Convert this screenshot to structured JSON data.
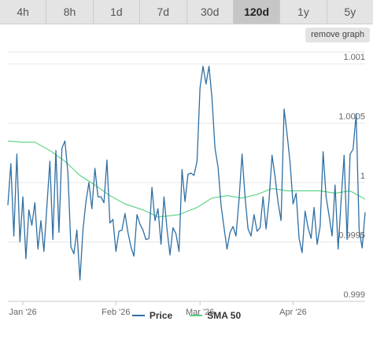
{
  "range_tabs": [
    {
      "label": "4h",
      "active": false
    },
    {
      "label": "8h",
      "active": false
    },
    {
      "label": "1d",
      "active": false
    },
    {
      "label": "7d",
      "active": false
    },
    {
      "label": "30d",
      "active": false
    },
    {
      "label": "120d",
      "active": true
    },
    {
      "label": "1y",
      "active": false
    },
    {
      "label": "5y",
      "active": false
    }
  ],
  "remove_graph_label": "remove graph",
  "chart_data": {
    "type": "line",
    "ylim": [
      0.999,
      1.0011
    ],
    "yticks": [
      {
        "value": 1.001,
        "label": "1.001"
      },
      {
        "value": 1.0005,
        "label": "1.0005"
      },
      {
        "value": 1.0,
        "label": "1"
      },
      {
        "value": 0.9995,
        "label": "0.9995"
      },
      {
        "value": 0.999,
        "label": "0.999"
      }
    ],
    "xlim": [
      "2025-12-27",
      "2026-04-25"
    ],
    "xticks": [
      {
        "date": "2026-01-01",
        "label": "Jan '26"
      },
      {
        "date": "2026-02-01",
        "label": "Feb '26"
      },
      {
        "date": "2026-03-01",
        "label": "Mar '26"
      },
      {
        "date": "2026-04-01",
        "label": "Apr '26"
      }
    ],
    "grid": {
      "horizontal": true,
      "vertical": false
    },
    "legend_position": "bottom-center",
    "series": [
      {
        "name": "Price",
        "color": "#2f6fa3",
        "points": [
          [
            "2025-12-27",
            0.99981
          ],
          [
            "2025-12-28",
            1.00016
          ],
          [
            "2025-12-29",
            0.99955
          ],
          [
            "2025-12-30",
            1.00024
          ],
          [
            "2025-12-31",
            0.9995
          ],
          [
            "2026-01-01",
            0.99988
          ],
          [
            "2026-01-02",
            0.99936
          ],
          [
            "2026-01-03",
            0.99977
          ],
          [
            "2026-01-04",
            0.99964
          ],
          [
            "2026-01-05",
            0.99983
          ],
          [
            "2026-01-06",
            0.99944
          ],
          [
            "2026-01-07",
            0.99968
          ],
          [
            "2026-01-08",
            0.99942
          ],
          [
            "2026-01-09",
            0.9998
          ],
          [
            "2026-01-10",
            1.00018
          ],
          [
            "2026-01-11",
            0.99952
          ],
          [
            "2026-01-12",
            1.00027
          ],
          [
            "2026-01-13",
            0.99958
          ],
          [
            "2026-01-14",
            1.00029
          ],
          [
            "2026-01-15",
            1.00035
          ],
          [
            "2026-01-16",
            1.00008
          ],
          [
            "2026-01-17",
            0.99946
          ],
          [
            "2026-01-18",
            0.9994
          ],
          [
            "2026-01-19",
            0.9996
          ],
          [
            "2026-01-20",
            0.99918
          ],
          [
            "2026-01-21",
            0.9996
          ],
          [
            "2026-01-22",
            0.99984
          ],
          [
            "2026-01-23",
            1.0
          ],
          [
            "2026-01-24",
            0.99978
          ],
          [
            "2026-01-25",
            1.00012
          ],
          [
            "2026-01-26",
            0.99988
          ],
          [
            "2026-01-27",
            0.99988
          ],
          [
            "2026-01-28",
            0.99983
          ],
          [
            "2026-01-29",
            1.00019
          ],
          [
            "2026-01-30",
            0.99966
          ],
          [
            "2026-01-31",
            0.99969
          ],
          [
            "2026-02-01",
            0.99942
          ],
          [
            "2026-02-02",
            0.99959
          ],
          [
            "2026-02-03",
            0.9996
          ],
          [
            "2026-02-04",
            0.99974
          ],
          [
            "2026-02-05",
            0.99958
          ],
          [
            "2026-02-06",
            0.99946
          ],
          [
            "2026-02-07",
            0.99938
          ],
          [
            "2026-02-08",
            0.99973
          ],
          [
            "2026-02-09",
            0.99965
          ],
          [
            "2026-02-10",
            0.9996
          ],
          [
            "2026-02-11",
            0.99952
          ],
          [
            "2026-02-12",
            0.99953
          ],
          [
            "2026-02-13",
            0.99996
          ],
          [
            "2026-02-14",
            0.99968
          ],
          [
            "2026-02-15",
            0.99978
          ],
          [
            "2026-02-16",
            0.99948
          ],
          [
            "2026-02-17",
            0.99988
          ],
          [
            "2026-02-18",
            0.99961
          ],
          [
            "2026-02-19",
            0.99939
          ],
          [
            "2026-02-20",
            0.99962
          ],
          [
            "2026-02-21",
            0.99957
          ],
          [
            "2026-02-22",
            0.99942
          ],
          [
            "2026-02-23",
            1.00011
          ],
          [
            "2026-02-24",
            0.99984
          ],
          [
            "2026-02-25",
            1.00007
          ],
          [
            "2026-02-26",
            1.00008
          ],
          [
            "2026-02-27",
            1.00006
          ],
          [
            "2026-02-28",
            1.00018
          ],
          [
            "2026-03-01",
            1.0008
          ],
          [
            "2026-03-02",
            1.00098
          ],
          [
            "2026-03-03",
            1.00083
          ],
          [
            "2026-03-04",
            1.00098
          ],
          [
            "2026-03-05",
            1.00071
          ],
          [
            "2026-03-06",
            1.00029
          ],
          [
            "2026-03-07",
            1.00013
          ],
          [
            "2026-03-08",
            0.99981
          ],
          [
            "2026-03-09",
            0.99962
          ],
          [
            "2026-03-10",
            0.99944
          ],
          [
            "2026-03-11",
            0.99958
          ],
          [
            "2026-03-12",
            0.99963
          ],
          [
            "2026-03-13",
            0.99955
          ],
          [
            "2026-03-14",
            0.99986
          ],
          [
            "2026-03-15",
            1.00024
          ],
          [
            "2026-03-16",
            0.99988
          ],
          [
            "2026-03-17",
            0.99961
          ],
          [
            "2026-03-18",
            0.99955
          ],
          [
            "2026-03-19",
            0.99973
          ],
          [
            "2026-03-20",
            0.99959
          ],
          [
            "2026-03-21",
            0.99962
          ],
          [
            "2026-03-22",
            0.99988
          ],
          [
            "2026-03-23",
            0.99961
          ],
          [
            "2026-03-24",
            0.99985
          ],
          [
            "2026-03-25",
            1.00023
          ],
          [
            "2026-03-26",
            1.00005
          ],
          [
            "2026-03-27",
            0.99983
          ],
          [
            "2026-03-28",
            0.99968
          ],
          [
            "2026-03-29",
            1.00062
          ],
          [
            "2026-03-30",
            1.00041
          ],
          [
            "2026-03-31",
            1.00017
          ],
          [
            "2026-04-01",
            0.99982
          ],
          [
            "2026-04-02",
            0.99991
          ],
          [
            "2026-04-03",
            0.99953
          ],
          [
            "2026-04-04",
            0.99941
          ],
          [
            "2026-04-05",
            0.99976
          ],
          [
            "2026-04-06",
            0.99962
          ],
          [
            "2026-04-07",
            0.99953
          ],
          [
            "2026-04-08",
            0.99979
          ],
          [
            "2026-04-09",
            0.99948
          ],
          [
            "2026-04-10",
            0.99963
          ],
          [
            "2026-04-11",
            1.00026
          ],
          [
            "2026-04-12",
            0.99988
          ],
          [
            "2026-04-13",
            0.99972
          ],
          [
            "2026-04-14",
            0.99955
          ],
          [
            "2026-04-15",
            0.99998
          ],
          [
            "2026-04-16",
            0.99944
          ],
          [
            "2026-04-17",
            0.99985
          ],
          [
            "2026-04-18",
            1.00023
          ],
          [
            "2026-04-19",
            0.99952
          ],
          [
            "2026-04-20",
            1.00024
          ],
          [
            "2026-04-21",
            1.00028
          ],
          [
            "2026-04-22",
            1.00058
          ],
          [
            "2026-04-23",
            0.9996
          ],
          [
            "2026-04-24",
            0.99945
          ],
          [
            "2026-04-25",
            0.99975
          ]
        ]
      },
      {
        "name": "SMA 50",
        "color": "#55d080",
        "points": [
          [
            "2025-12-27",
            1.00035
          ],
          [
            "2026-01-01",
            1.00034
          ],
          [
            "2026-01-05",
            1.00034
          ],
          [
            "2026-01-10",
            1.00027
          ],
          [
            "2026-01-15",
            1.00018
          ],
          [
            "2026-01-20",
            1.00006
          ],
          [
            "2026-01-25",
            0.99998
          ],
          [
            "2026-01-30",
            0.99989
          ],
          [
            "2026-02-04",
            0.99982
          ],
          [
            "2026-02-10",
            0.99977
          ],
          [
            "2026-02-15",
            0.99971
          ],
          [
            "2026-02-22",
            0.99973
          ],
          [
            "2026-02-28",
            0.99979
          ],
          [
            "2026-03-05",
            0.99987
          ],
          [
            "2026-03-10",
            0.99989
          ],
          [
            "2026-03-15",
            0.99987
          ],
          [
            "2026-03-20",
            0.9999
          ],
          [
            "2026-03-25",
            0.99995
          ],
          [
            "2026-03-30",
            0.99993
          ],
          [
            "2026-04-05",
            0.99993
          ],
          [
            "2026-04-10",
            0.99993
          ],
          [
            "2026-04-15",
            0.99991
          ],
          [
            "2026-04-20",
            0.99993
          ],
          [
            "2026-04-25",
            0.99986
          ]
        ]
      }
    ]
  }
}
